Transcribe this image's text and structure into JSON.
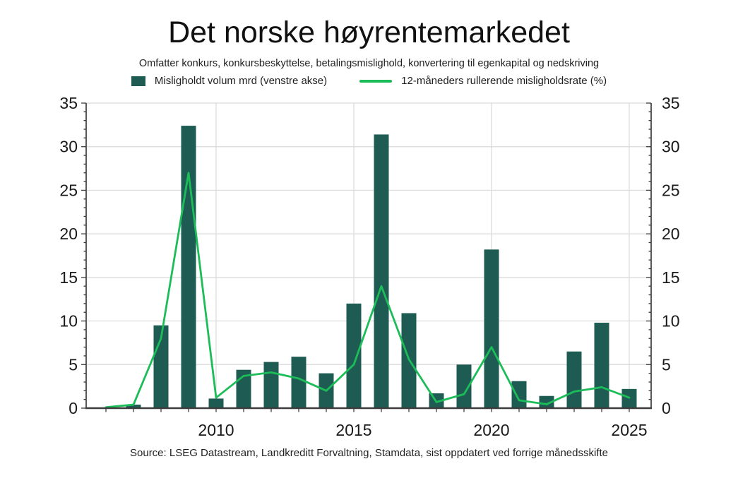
{
  "page": {
    "title": "Det norske høyrentemarkedet",
    "subtitle": "Omfatter konkurs, konkursbeskyttelse, betalingsmislighold, konvertering til egenkapital og nedskriving",
    "source": "Source: LSEG Datastream, Landkreditt Forvaltning, Stamdata, sist oppdatert ved forrige månedsskifte"
  },
  "legend": {
    "bar_label": "Misligholdt volum mrd (venstre akse)",
    "line_label": "12-måneders rullerende misligholdsrate (%)",
    "bar_color": "#1e5b53",
    "line_color": "#1cbd59"
  },
  "chart_data": {
    "type": "combo-bar-line",
    "title": "Det norske høyrentemarkedet",
    "categories": [
      2006,
      2007,
      2008,
      2009,
      2010,
      2011,
      2012,
      2013,
      2014,
      2015,
      2016,
      2017,
      2018,
      2019,
      2020,
      2021,
      2022,
      2023,
      2024,
      2025
    ],
    "series": [
      {
        "name": "Misligholdt volum mrd (venstre akse)",
        "type": "bar",
        "axis": "left",
        "color": "#1e5b53",
        "values": [
          0,
          0.4,
          9.5,
          32.4,
          1.1,
          4.4,
          5.3,
          5.9,
          4.0,
          12.0,
          31.4,
          10.9,
          1.7,
          5.0,
          18.2,
          3.1,
          1.4,
          6.5,
          9.8,
          2.2
        ]
      },
      {
        "name": "12-måneders rullerende misligholdsrate (%)",
        "type": "line",
        "axis": "right",
        "color": "#1cbd59",
        "values": [
          0.1,
          0.4,
          8.0,
          27.0,
          1.2,
          3.7,
          4.1,
          3.4,
          2.0,
          5.0,
          14.0,
          5.6,
          0.7,
          1.6,
          7.0,
          0.9,
          0.45,
          1.9,
          2.4,
          1.2
        ]
      }
    ],
    "ylim": [
      0,
      35
    ],
    "y_ticks": [
      0,
      5,
      10,
      15,
      20,
      25,
      30,
      35
    ],
    "y_minor_tick_step": 1,
    "x_tick_labels": [
      2010,
      2015,
      2020,
      2025
    ],
    "grid": true,
    "legend_position": "top",
    "colors": {
      "grid": "#d9d9d9",
      "axis": "#3d3d3d",
      "tick_text": "#1a1a1a"
    }
  }
}
